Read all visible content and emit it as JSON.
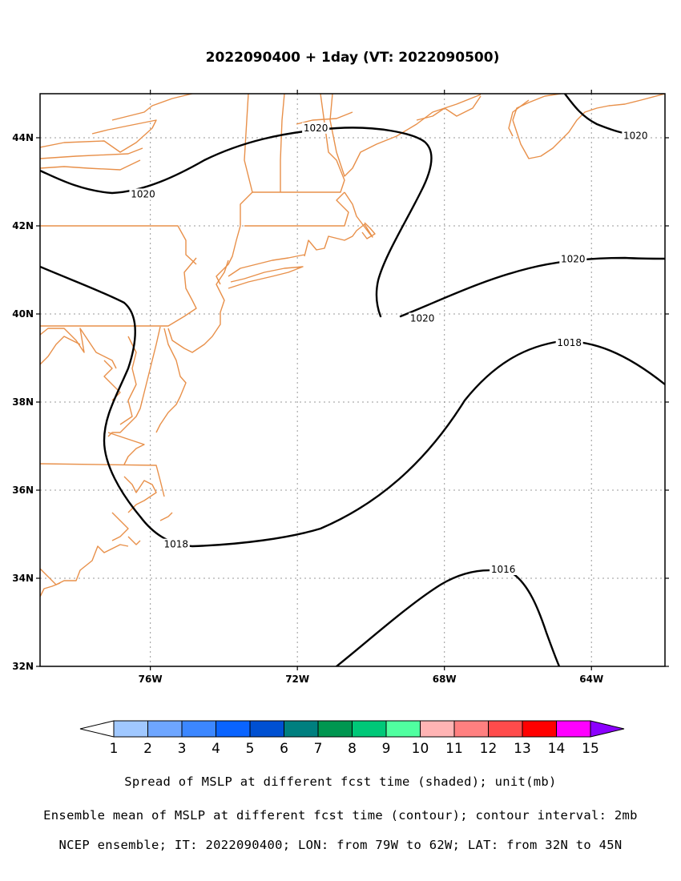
{
  "title": "2022090400 + 1day (VT: 2022090500)",
  "map": {
    "lon_range": [
      -79,
      -62
    ],
    "lat_range": [
      32,
      45
    ],
    "lon_ticks": [
      {
        "value": -76,
        "label": "76W"
      },
      {
        "value": -72,
        "label": "72W"
      },
      {
        "value": -68,
        "label": "68W"
      },
      {
        "value": -64,
        "label": "64W"
      }
    ],
    "lat_ticks": [
      {
        "value": 44,
        "label": "44N"
      },
      {
        "value": 42,
        "label": "42N"
      },
      {
        "value": 40,
        "label": "40N"
      },
      {
        "value": 38,
        "label": "38N"
      },
      {
        "value": 36,
        "label": "36N"
      },
      {
        "value": 34,
        "label": "34N"
      },
      {
        "value": 32,
        "label": "32N"
      }
    ],
    "grid": "dotted",
    "coast_color": "#e8904a",
    "contour_color": "#000000",
    "contour_labels": [
      {
        "text": "1020",
        "lon": -71.5,
        "lat": 44.22
      },
      {
        "text": "1020",
        "lon": -62.8,
        "lat": 44.05
      },
      {
        "text": "1020",
        "lon": -76.2,
        "lat": 42.72
      },
      {
        "text": "1020",
        "lon": -64.5,
        "lat": 41.25
      },
      {
        "text": "1020",
        "lon": -68.6,
        "lat": 39.9
      },
      {
        "text": "1018",
        "lon": -64.6,
        "lat": 39.35
      },
      {
        "text": "1018",
        "lon": -75.3,
        "lat": 34.77
      },
      {
        "text": "1016",
        "lon": -66.4,
        "lat": 34.2
      }
    ]
  },
  "colorbar": {
    "labels": [
      "1",
      "2",
      "3",
      "4",
      "5",
      "6",
      "7",
      "8",
      "9",
      "10",
      "11",
      "12",
      "13",
      "14",
      "15"
    ],
    "colors": [
      "#ffffff",
      "#a0c8ff",
      "#6ea6ff",
      "#3c87ff",
      "#0a64ff",
      "#0050d2",
      "#007f7f",
      "#009650",
      "#00c878",
      "#50ffa0",
      "#ffb4b4",
      "#ff8080",
      "#ff4b4b",
      "#ff0000",
      "#ff00ff",
      "#8c00ff"
    ]
  },
  "captions": [
    "Spread of MSLP at different fcst time (shaded); unit(mb)",
    "Ensemble mean of MSLP at different fcst time (contour); contour interval: 2mb",
    "NCEP ensemble; IT: 2022090400; LON: from 79W to 62W; LAT: from 32N to 45N"
  ]
}
